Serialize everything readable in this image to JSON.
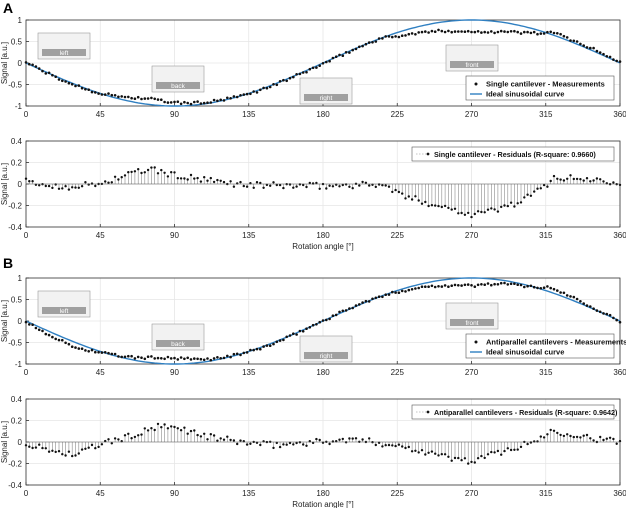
{
  "panel_labels": [
    "A",
    "B"
  ],
  "colors": {
    "curve": "#2f7fc1",
    "marker": "#111111",
    "axis": "#333333",
    "grid": "#e6e6e6",
    "inset_bg": "#f2f2f2",
    "inset_bar": "#a0a0a0"
  },
  "chart_data": [
    {
      "type": "scatter",
      "panel": "A",
      "xlabel": "",
      "ylabel": "Signal [a.u.]",
      "xlim": [
        0,
        360
      ],
      "ylim": [
        -1,
        1
      ],
      "xticks": [
        "0",
        "45",
        "90",
        "135",
        "180",
        "225",
        "270",
        "315",
        "360"
      ],
      "yticks": [
        "-1",
        "-0.5",
        "0",
        "0.5",
        "1"
      ],
      "grid": true,
      "legend_position": "bottom-right",
      "legend": [
        "Single cantilever - Measurements",
        "Ideal sinusoidal curve"
      ],
      "insets": [
        {
          "label": "left",
          "angle": 0
        },
        {
          "label": "back",
          "angle": 90
        },
        {
          "label": "right",
          "angle": 180
        },
        {
          "label": "front",
          "angle": 270
        }
      ],
      "series": [
        {
          "name": "Single cantilever - Measurements",
          "kind": "points",
          "dev": [
            [
              0,
              0.02
            ],
            [
              20,
              -0.03
            ],
            [
              45,
              0.0
            ],
            [
              60,
              0.08
            ],
            [
              75,
              0.14
            ],
            [
              90,
              0.08
            ],
            [
              110,
              0.03
            ],
            [
              135,
              -0.01
            ],
            [
              180,
              -0.02
            ],
            [
              215,
              0.0
            ],
            [
              230,
              -0.12
            ],
            [
              255,
              -0.22
            ],
            [
              270,
              -0.28
            ],
            [
              285,
              -0.24
            ],
            [
              300,
              -0.16
            ],
            [
              312,
              -0.05
            ],
            [
              320,
              0.06
            ],
            [
              345,
              0.04
            ],
            [
              360,
              0.02
            ]
          ]
        },
        {
          "name": "Ideal sinusoidal curve",
          "kind": "curve",
          "function": "-sin(x)"
        }
      ]
    },
    {
      "type": "stem",
      "panel": "A",
      "xlabel": "Rotation angle [°]",
      "ylabel": "Signal [a.u.]",
      "xlim": [
        0,
        360
      ],
      "ylim": [
        -0.4,
        0.4
      ],
      "xticks": [
        "0",
        "45",
        "90",
        "135",
        "180",
        "225",
        "270",
        "315",
        "360"
      ],
      "yticks": [
        "-0.4",
        "-0.2",
        "0",
        "0.2",
        "0.4"
      ],
      "grid": true,
      "legend_position": "top-right",
      "legend": [
        "Single cantilever - Residuals (R-square: 0.9660)"
      ],
      "series": [
        {
          "name": "Single cantilever - Residuals (R-square: 0.9660)",
          "dev": [
            [
              0,
              0.02
            ],
            [
              20,
              -0.03
            ],
            [
              45,
              0.0
            ],
            [
              60,
              0.08
            ],
            [
              75,
              0.14
            ],
            [
              90,
              0.08
            ],
            [
              110,
              0.03
            ],
            [
              135,
              -0.01
            ],
            [
              180,
              -0.02
            ],
            [
              215,
              0.0
            ],
            [
              230,
              -0.12
            ],
            [
              255,
              -0.22
            ],
            [
              270,
              -0.28
            ],
            [
              285,
              -0.24
            ],
            [
              300,
              -0.16
            ],
            [
              312,
              -0.05
            ],
            [
              320,
              0.06
            ],
            [
              345,
              0.04
            ],
            [
              360,
              0.02
            ]
          ]
        }
      ]
    },
    {
      "type": "scatter",
      "panel": "B",
      "xlabel": "",
      "ylabel": "Signal [a.u.]",
      "xlim": [
        0,
        360
      ],
      "ylim": [
        -1,
        1
      ],
      "xticks": [
        "0",
        "45",
        "90",
        "135",
        "180",
        "225",
        "270",
        "315",
        "360"
      ],
      "yticks": [
        "-1",
        "-0.5",
        "0",
        "0.5",
        "1"
      ],
      "grid": true,
      "legend_position": "bottom-right",
      "legend": [
        "Antiparallel cantilevers - Measurements",
        "Ideal sinusoidal curve"
      ],
      "insets": [
        {
          "label": "left",
          "angle": 0
        },
        {
          "label": "back",
          "angle": 90
        },
        {
          "label": "right",
          "angle": 180
        },
        {
          "label": "front",
          "angle": 270
        }
      ],
      "series": [
        {
          "name": "Antiparallel cantilevers - Measurements",
          "kind": "points",
          "dev": [
            [
              0,
              -0.02
            ],
            [
              15,
              -0.08
            ],
            [
              30,
              -0.12
            ],
            [
              45,
              -0.02
            ],
            [
              65,
              0.06
            ],
            [
              80,
              0.14
            ],
            [
              95,
              0.12
            ],
            [
              110,
              0.05
            ],
            [
              130,
              0.0
            ],
            [
              150,
              -0.03
            ],
            [
              175,
              0.0
            ],
            [
              200,
              0.02
            ],
            [
              220,
              -0.02
            ],
            [
              240,
              -0.08
            ],
            [
              260,
              -0.16
            ],
            [
              272,
              -0.18
            ],
            [
              285,
              -0.1
            ],
            [
              300,
              -0.04
            ],
            [
              310,
              0.02
            ],
            [
              318,
              0.1
            ],
            [
              330,
              0.08
            ],
            [
              345,
              0.03
            ],
            [
              360,
              0.0
            ]
          ]
        },
        {
          "name": "Ideal sinusoidal curve",
          "kind": "curve",
          "function": "-sin(x)"
        }
      ]
    },
    {
      "type": "stem",
      "panel": "B",
      "xlabel": "Rotation angle [°]",
      "ylabel": "Signal [a.u.]",
      "xlim": [
        0,
        360
      ],
      "ylim": [
        -0.4,
        0.4
      ],
      "xticks": [
        "0",
        "45",
        "90",
        "135",
        "180",
        "225",
        "270",
        "315",
        "360"
      ],
      "yticks": [
        "-0.4",
        "-0.2",
        "0",
        "0.2",
        "0.4"
      ],
      "grid": true,
      "legend_position": "top-right",
      "legend": [
        "Antiparallel cantilevers - Residuals (R-square: 0.9642)"
      ],
      "series": [
        {
          "name": "Antiparallel cantilevers - Residuals (R-square: 0.9642)",
          "dev": [
            [
              0,
              -0.02
            ],
            [
              15,
              -0.08
            ],
            [
              30,
              -0.12
            ],
            [
              45,
              -0.02
            ],
            [
              65,
              0.06
            ],
            [
              80,
              0.14
            ],
            [
              95,
              0.12
            ],
            [
              110,
              0.05
            ],
            [
              130,
              0.0
            ],
            [
              150,
              -0.03
            ],
            [
              175,
              0.0
            ],
            [
              200,
              0.02
            ],
            [
              220,
              -0.02
            ],
            [
              240,
              -0.08
            ],
            [
              260,
              -0.16
            ],
            [
              272,
              -0.18
            ],
            [
              285,
              -0.1
            ],
            [
              300,
              -0.04
            ],
            [
              310,
              0.02
            ],
            [
              318,
              0.1
            ],
            [
              330,
              0.08
            ],
            [
              345,
              0.03
            ],
            [
              360,
              0.0
            ]
          ]
        }
      ]
    }
  ]
}
